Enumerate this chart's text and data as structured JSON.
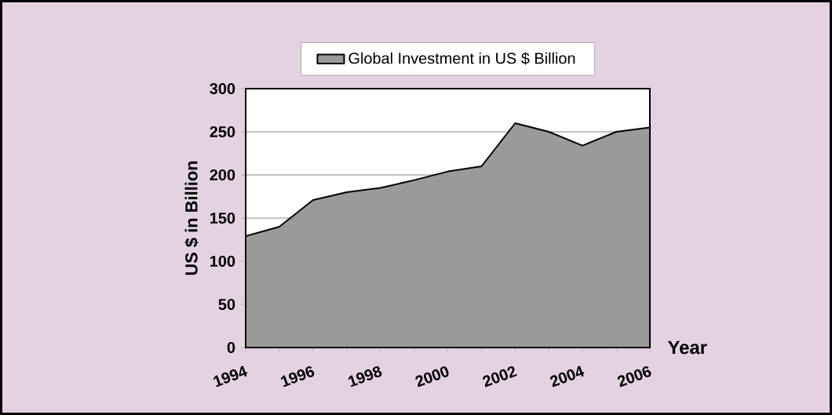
{
  "chart_data": {
    "type": "area",
    "xlabel": "Year",
    "ylabel": "US $ in Billion",
    "x": [
      1994,
      1995,
      1996,
      1997,
      1998,
      1999,
      2000,
      2001,
      2002,
      2003,
      2004,
      2005,
      2006
    ],
    "series": [
      {
        "name": "Global Investment in US $ Billion",
        "color": "#9a9a9a",
        "values": [
          129,
          140,
          171,
          180,
          185,
          194,
          204,
          210,
          260,
          250,
          234,
          250,
          255
        ]
      }
    ],
    "xlim": [
      1994,
      2006
    ],
    "xticks": [
      1994,
      {
        "value": 1995,
        "label": null
      },
      1996,
      {
        "value": 1997,
        "label": null
      },
      1998,
      {
        "value": 1999,
        "label": null
      },
      2000,
      {
        "value": 2001,
        "label": null
      },
      2002,
      {
        "value": 2003,
        "label": null
      },
      2004,
      {
        "value": 2005,
        "label": null
      },
      2006
    ],
    "ylim": [
      0,
      300
    ],
    "yticks": [
      0,
      50,
      100,
      150,
      200,
      250,
      300
    ],
    "grid": "y",
    "legend": "top"
  }
}
